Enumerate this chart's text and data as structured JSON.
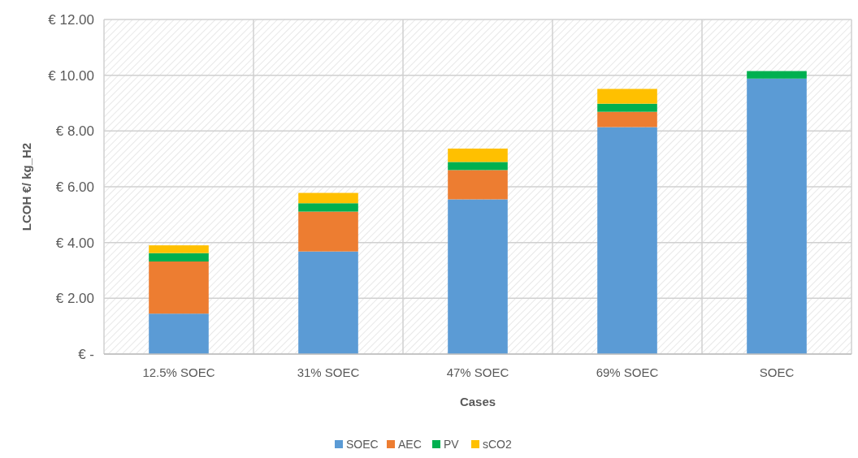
{
  "chart_data": {
    "type": "bar",
    "stacked": true,
    "xlabel": "Cases",
    "ylabel": "LCOH €/ kg_H2",
    "categories": [
      "12.5% SOEC",
      "31% SOEC",
      "47% SOEC",
      "69% SOEC",
      "SOEC"
    ],
    "series": [
      {
        "name": "SOEC",
        "color": "#5b9bd5",
        "values": [
          1.45,
          3.68,
          5.55,
          8.14,
          9.88
        ]
      },
      {
        "name": "AEC",
        "color": "#ed7d31",
        "values": [
          1.87,
          1.43,
          1.05,
          0.55,
          null
        ]
      },
      {
        "name": "PV",
        "color": "#00b050",
        "values": [
          0.3,
          0.3,
          0.29,
          0.29,
          0.27
        ]
      },
      {
        "name": "sCO2",
        "color": "#ffc000",
        "values": [
          0.28,
          0.37,
          0.48,
          0.53,
          null
        ]
      }
    ],
    "ylim": [
      0,
      12
    ],
    "yticks": [
      {
        "value": 0,
        "label": "€ -"
      },
      {
        "value": 2,
        "label": "€ 2.00"
      },
      {
        "value": 4,
        "label": "€ 4.00"
      },
      {
        "value": 6,
        "label": "€ 6.00"
      },
      {
        "value": 8,
        "label": "€ 8.00"
      },
      {
        "value": 10,
        "label": "€ 10.00"
      },
      {
        "value": 12,
        "label": "€ 12.00"
      }
    ],
    "grid": true,
    "legend": "bottom"
  }
}
